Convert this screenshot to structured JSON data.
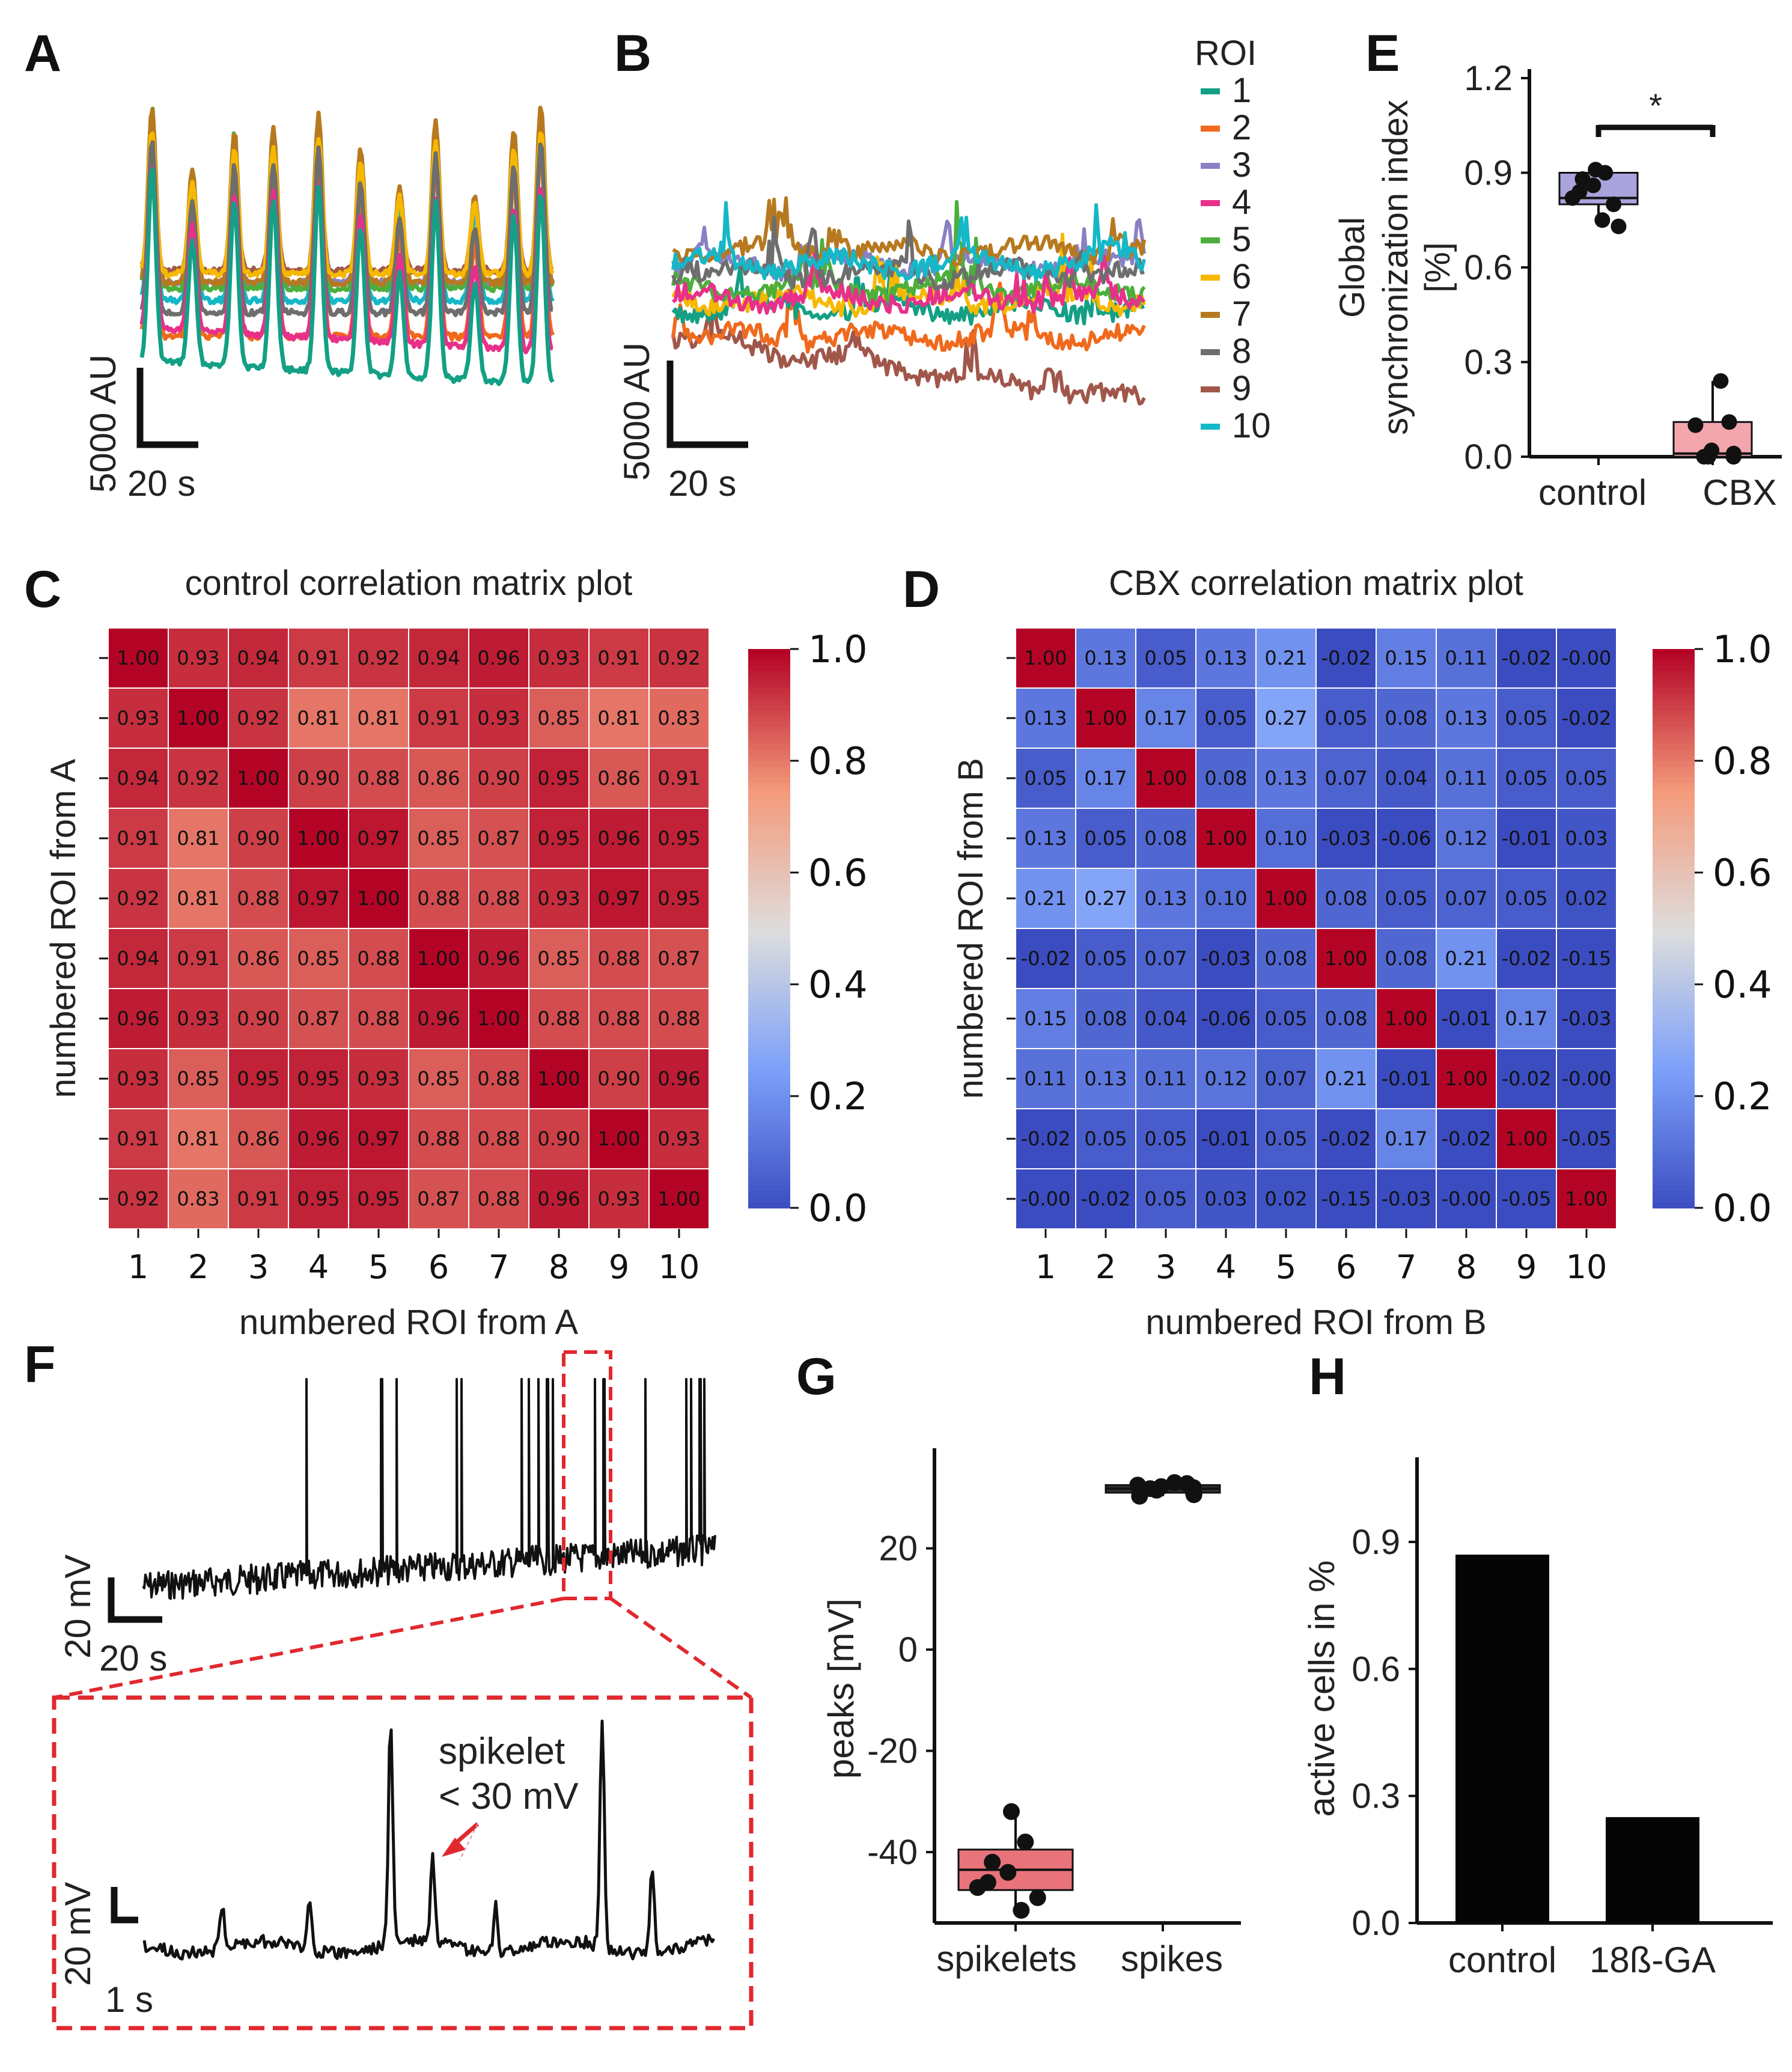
{
  "panels": {
    "A": {
      "label": "A",
      "scalebar": {
        "y": "5000 AU",
        "x": "20 s"
      }
    },
    "B": {
      "label": "B",
      "scalebar": {
        "y": "5000 AU",
        "x": "20 s"
      },
      "legend_title": "ROI",
      "legend": [
        {
          "label": "1",
          "color": "#13a085"
        },
        {
          "label": "2",
          "color": "#f06a1d"
        },
        {
          "label": "3",
          "color": "#8a80c4"
        },
        {
          "label": "4",
          "color": "#e8308a"
        },
        {
          "label": "5",
          "color": "#4caf3c"
        },
        {
          "label": "6",
          "color": "#f6b800"
        },
        {
          "label": "7",
          "color": "#b7791f"
        },
        {
          "label": "8",
          "color": "#6e6e6e"
        },
        {
          "label": "9",
          "color": "#a0574a"
        },
        {
          "label": "10",
          "color": "#15b8c7"
        }
      ]
    },
    "C": {
      "label": "C"
    },
    "D": {
      "label": "D"
    },
    "E": {
      "label": "E"
    },
    "F": {
      "label": "F",
      "scalebar_top": {
        "y": "20 mV",
        "x": "20 s"
      },
      "scalebar_zoom": {
        "y": "20 mV",
        "x": "1 s"
      },
      "annotation_line1": "spikelet",
      "annotation_line2": "< 30 mV"
    },
    "G": {
      "label": "G"
    },
    "H": {
      "label": "H"
    }
  },
  "chart_data": [
    {
      "id": "C",
      "type": "heatmap",
      "title": "control correlation matrix plot",
      "xlabel": "numbered ROI from A",
      "ylabel": "numbered ROI from A",
      "categories": [
        "1",
        "2",
        "3",
        "4",
        "5",
        "6",
        "7",
        "8",
        "9",
        "10"
      ],
      "colorbar_ticks": [
        "1.0",
        "0.8",
        "0.6",
        "0.4",
        "0.2",
        "0.0"
      ],
      "colorbar_range": [
        0,
        1
      ],
      "values": [
        [
          "1.00",
          "0.93",
          "0.94",
          "0.91",
          "0.92",
          "0.94",
          "0.96",
          "0.93",
          "0.91",
          "0.92"
        ],
        [
          "0.93",
          "1.00",
          "0.92",
          "0.81",
          "0.81",
          "0.91",
          "0.93",
          "0.85",
          "0.81",
          "0.83"
        ],
        [
          "0.94",
          "0.92",
          "1.00",
          "0.90",
          "0.88",
          "0.86",
          "0.90",
          "0.95",
          "0.86",
          "0.91"
        ],
        [
          "0.91",
          "0.81",
          "0.90",
          "1.00",
          "0.97",
          "0.85",
          "0.87",
          "0.95",
          "0.96",
          "0.95"
        ],
        [
          "0.92",
          "0.81",
          "0.88",
          "0.97",
          "1.00",
          "0.88",
          "0.88",
          "0.93",
          "0.97",
          "0.95"
        ],
        [
          "0.94",
          "0.91",
          "0.86",
          "0.85",
          "0.88",
          "1.00",
          "0.96",
          "0.85",
          "0.88",
          "0.87"
        ],
        [
          "0.96",
          "0.93",
          "0.90",
          "0.87",
          "0.88",
          "0.96",
          "1.00",
          "0.88",
          "0.88",
          "0.88"
        ],
        [
          "0.93",
          "0.85",
          "0.95",
          "0.95",
          "0.93",
          "0.85",
          "0.88",
          "1.00",
          "0.90",
          "0.96"
        ],
        [
          "0.91",
          "0.81",
          "0.86",
          "0.96",
          "0.97",
          "0.88",
          "0.88",
          "0.90",
          "1.00",
          "0.93"
        ],
        [
          "0.92",
          "0.83",
          "0.91",
          "0.95",
          "0.95",
          "0.87",
          "0.88",
          "0.96",
          "0.93",
          "1.00"
        ]
      ]
    },
    {
      "id": "D",
      "type": "heatmap",
      "title": "CBX correlation matrix plot",
      "xlabel": "numbered ROI from B",
      "ylabel": "numbered ROI from B",
      "categories": [
        "1",
        "2",
        "3",
        "4",
        "5",
        "6",
        "7",
        "8",
        "9",
        "10"
      ],
      "colorbar_ticks": [
        "1.0",
        "0.8",
        "0.6",
        "0.4",
        "0.2",
        "0.0"
      ],
      "colorbar_range": [
        0,
        1
      ],
      "values": [
        [
          "1.00",
          "0.13",
          "0.05",
          "0.13",
          "0.21",
          "-0.02",
          "0.15",
          "0.11",
          "-0.02",
          "-0.00"
        ],
        [
          "0.13",
          "1.00",
          "0.17",
          "0.05",
          "0.27",
          "0.05",
          "0.08",
          "0.13",
          "0.05",
          "-0.02"
        ],
        [
          "0.05",
          "0.17",
          "1.00",
          "0.08",
          "0.13",
          "0.07",
          "0.04",
          "0.11",
          "0.05",
          "0.05"
        ],
        [
          "0.13",
          "0.05",
          "0.08",
          "1.00",
          "0.10",
          "-0.03",
          "-0.06",
          "0.12",
          "-0.01",
          "0.03"
        ],
        [
          "0.21",
          "0.27",
          "0.13",
          "0.10",
          "1.00",
          "0.08",
          "0.05",
          "0.07",
          "0.05",
          "0.02"
        ],
        [
          "-0.02",
          "0.05",
          "0.07",
          "-0.03",
          "0.08",
          "1.00",
          "0.08",
          "0.21",
          "-0.02",
          "-0.15"
        ],
        [
          "0.15",
          "0.08",
          "0.04",
          "-0.06",
          "0.05",
          "0.08",
          "1.00",
          "-0.01",
          "0.17",
          "-0.03"
        ],
        [
          "0.11",
          "0.13",
          "0.11",
          "0.12",
          "0.07",
          "0.21",
          "-0.01",
          "1.00",
          "-0.02",
          "-0.00"
        ],
        [
          "-0.02",
          "0.05",
          "0.05",
          "-0.01",
          "0.05",
          "-0.02",
          "0.17",
          "-0.02",
          "1.00",
          "-0.05"
        ],
        [
          "-0.00",
          "-0.02",
          "0.05",
          "0.03",
          "0.02",
          "-0.15",
          "-0.03",
          "-0.00",
          "-0.05",
          "1.00"
        ]
      ]
    },
    {
      "id": "E",
      "type": "box",
      "ylabel_line1": "Global",
      "ylabel_line2": "synchronization index",
      "ylabel_line3": "[%]",
      "ylim": [
        0,
        1.2
      ],
      "yticks": [
        "0.0",
        "0.3",
        "0.6",
        "0.9",
        "1.2"
      ],
      "categories": [
        "control",
        "CBX"
      ],
      "significance": "*",
      "boxes": [
        {
          "name": "control",
          "q1": 0.8,
          "median": 0.82,
          "q3": 0.9,
          "whisker_low": 0.73,
          "whisker_high": 0.92,
          "color": "#a9a4dc",
          "points": [
            0.91,
            0.9,
            0.88,
            0.86,
            0.84,
            0.82,
            0.8,
            0.75,
            0.73
          ]
        },
        {
          "name": "CBX",
          "q1": 0.0,
          "median": 0.01,
          "q3": 0.11,
          "whisker_low": 0.0,
          "whisker_high": 0.24,
          "color": "#f4a6ad",
          "points": [
            0.24,
            0.11,
            0.1,
            0.02,
            0.01,
            0.0,
            0.0,
            0.0,
            0.0
          ]
        }
      ]
    },
    {
      "id": "G",
      "type": "box",
      "ylabel": "peaks [mV]",
      "ylim": [
        -54,
        38
      ],
      "yticks": [
        "-40",
        "-20",
        "0",
        "20"
      ],
      "categories": [
        "spikelets",
        "spikes"
      ],
      "boxes": [
        {
          "name": "spikelets",
          "q1": -47.5,
          "median": -43.5,
          "q3": -39.5,
          "whisker_low": -51.5,
          "whisker_high": -32,
          "color": "#e8737a",
          "points": [
            -32,
            -38,
            -42,
            -44,
            -46,
            -47,
            -49,
            -51.5
          ]
        },
        {
          "name": "spikes",
          "q1": 31,
          "median": 31.8,
          "q3": 32.5,
          "whisker_low": 30.3,
          "whisker_high": 33.3,
          "color": "#333333",
          "points": [
            33,
            32.8,
            32.5,
            32.2,
            32,
            31.8,
            31.5,
            31.2,
            31,
            30.6,
            30.3
          ]
        }
      ]
    },
    {
      "id": "H",
      "type": "bar",
      "ylabel": "active cells in %",
      "ylim": [
        0,
        1.1
      ],
      "yticks": [
        "0.0",
        "0.3",
        "0.6",
        "0.9"
      ],
      "categories": [
        "control",
        "18ß-GA"
      ],
      "values": [
        0.87,
        0.25
      ]
    }
  ]
}
